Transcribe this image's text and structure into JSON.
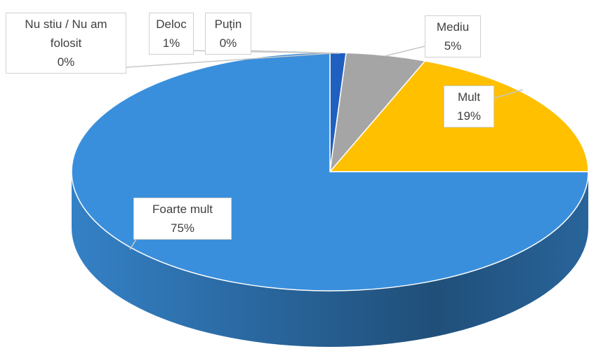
{
  "chart_data": {
    "type": "pie",
    "categories": [
      "Nu stiu / Nu am folosit",
      "Deloc",
      "Puțin",
      "Mediu",
      "Mult",
      "Foarte mult"
    ],
    "values": [
      0,
      1,
      0,
      5,
      19,
      75
    ],
    "value_labels": [
      "0%",
      "1%",
      "0%",
      "5%",
      "19%",
      "75%"
    ],
    "colors": [
      "#7f7f7f",
      "#1f5fbf",
      "#ed7d31",
      "#a5a5a5",
      "#ffc000",
      "#3a8fdc"
    ]
  }
}
